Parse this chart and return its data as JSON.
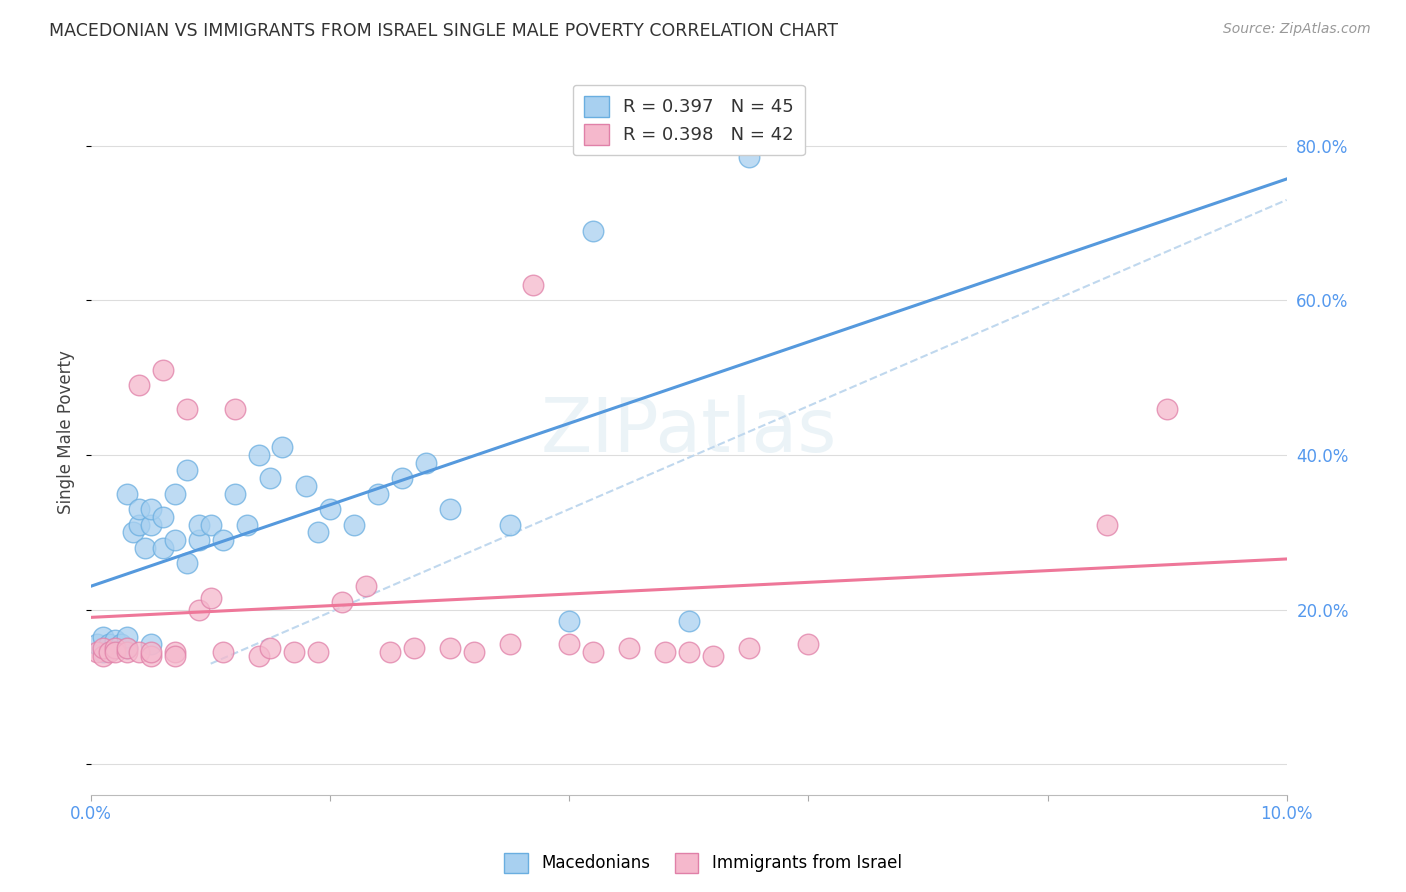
{
  "title": "MACEDONIAN VS IMMIGRANTS FROM ISRAEL SINGLE MALE POVERTY CORRELATION CHART",
  "source": "Source: ZipAtlas.com",
  "ylabel": "Single Male Poverty",
  "xlim": [
    0.0,
    0.1
  ],
  "ylim": [
    -0.04,
    0.9
  ],
  "legend_r1": "R = 0.397",
  "legend_n1": "N = 45",
  "legend_r2": "R = 0.398",
  "legend_n2": "N = 42",
  "blue_fill": "#a8d0f0",
  "blue_edge": "#6aaee0",
  "pink_fill": "#f5b8cc",
  "pink_edge": "#e080a8",
  "blue_line": "#5599dd",
  "pink_line": "#ee7799",
  "dashed_color": "#c0d8ee",
  "macedonians_x": [
    0.0005,
    0.001,
    0.001,
    0.0015,
    0.002,
    0.002,
    0.0025,
    0.003,
    0.003,
    0.003,
    0.0035,
    0.004,
    0.004,
    0.0045,
    0.005,
    0.005,
    0.005,
    0.006,
    0.006,
    0.007,
    0.007,
    0.008,
    0.008,
    0.009,
    0.009,
    0.01,
    0.011,
    0.012,
    0.013,
    0.014,
    0.015,
    0.016,
    0.018,
    0.019,
    0.02,
    0.022,
    0.024,
    0.026,
    0.028,
    0.03,
    0.035,
    0.04,
    0.042,
    0.05,
    0.055
  ],
  "macedonians_y": [
    0.155,
    0.145,
    0.165,
    0.155,
    0.15,
    0.16,
    0.155,
    0.15,
    0.165,
    0.35,
    0.3,
    0.31,
    0.33,
    0.28,
    0.155,
    0.31,
    0.33,
    0.28,
    0.32,
    0.29,
    0.35,
    0.26,
    0.38,
    0.29,
    0.31,
    0.31,
    0.29,
    0.35,
    0.31,
    0.4,
    0.37,
    0.41,
    0.36,
    0.3,
    0.33,
    0.31,
    0.35,
    0.37,
    0.39,
    0.33,
    0.31,
    0.185,
    0.69,
    0.185,
    0.785
  ],
  "israel_x": [
    0.0005,
    0.001,
    0.001,
    0.0015,
    0.002,
    0.002,
    0.003,
    0.003,
    0.004,
    0.004,
    0.005,
    0.005,
    0.006,
    0.007,
    0.007,
    0.008,
    0.009,
    0.01,
    0.011,
    0.012,
    0.014,
    0.015,
    0.017,
    0.019,
    0.021,
    0.023,
    0.025,
    0.027,
    0.03,
    0.032,
    0.035,
    0.037,
    0.04,
    0.042,
    0.045,
    0.048,
    0.05,
    0.052,
    0.055,
    0.06,
    0.085,
    0.09
  ],
  "israel_y": [
    0.145,
    0.14,
    0.15,
    0.145,
    0.15,
    0.145,
    0.145,
    0.15,
    0.145,
    0.49,
    0.14,
    0.145,
    0.51,
    0.145,
    0.14,
    0.46,
    0.2,
    0.215,
    0.145,
    0.46,
    0.14,
    0.15,
    0.145,
    0.145,
    0.21,
    0.23,
    0.145,
    0.15,
    0.15,
    0.145,
    0.155,
    0.62,
    0.155,
    0.145,
    0.15,
    0.145,
    0.145,
    0.14,
    0.15,
    0.155,
    0.31,
    0.46
  ]
}
